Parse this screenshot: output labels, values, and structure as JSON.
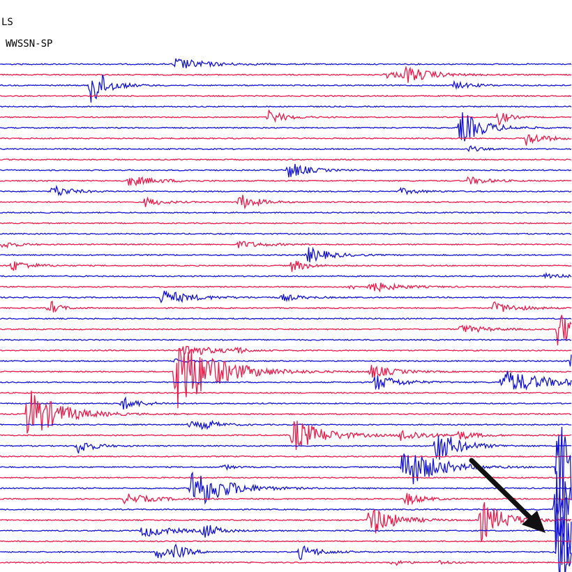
{
  "header": {
    "station": "LS",
    "network": "WWSSN-SP"
  }
}
